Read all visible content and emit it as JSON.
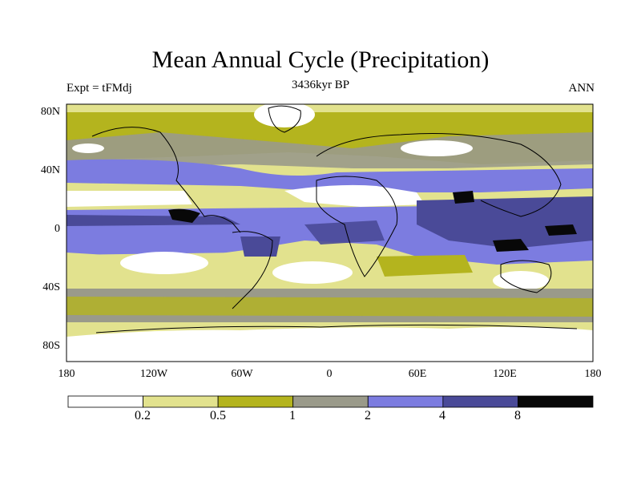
{
  "title": "Mean Annual Cycle (Precipitation)",
  "subtitle": "3436kyr BP",
  "left_label": "Expt = tFMdj",
  "right_label": "ANN",
  "lat_ticks": [
    "80N",
    "40N",
    "0",
    "40S",
    "80S"
  ],
  "lon_ticks": [
    "180",
    "120W",
    "60W",
    "0",
    "60E",
    "120E",
    "180"
  ],
  "colorbar": {
    "colors": [
      "#ffffff",
      "#e2e28e",
      "#b4b41e",
      "#9a9a8a",
      "#7c7ce0",
      "#4a4a98",
      "#080808"
    ],
    "tick_labels": [
      "0.2",
      "0.5",
      "1",
      "2",
      "4",
      "8"
    ]
  },
  "palette": {
    "frame": "#000000",
    "coast": "#000000"
  }
}
